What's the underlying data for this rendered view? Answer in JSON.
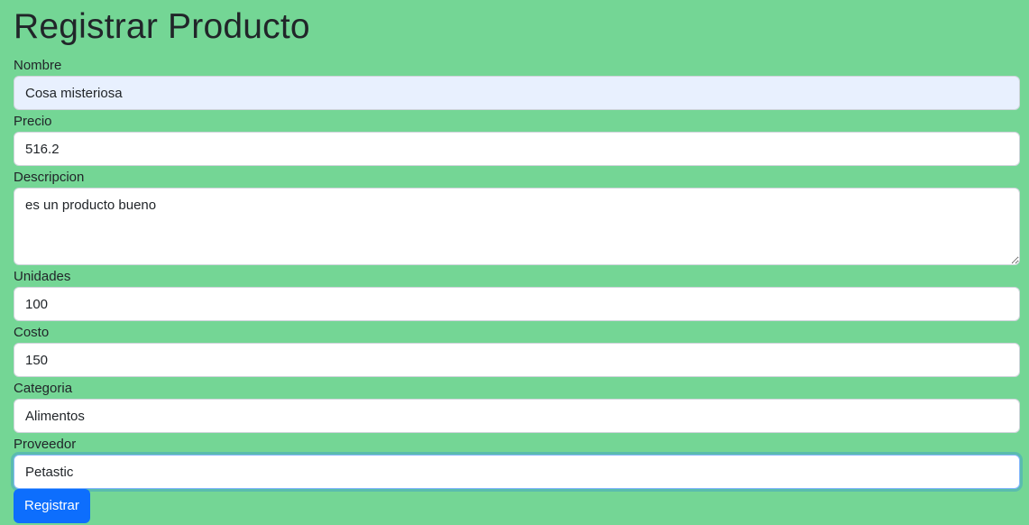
{
  "page": {
    "title": "Registrar Producto"
  },
  "form": {
    "nombre": {
      "label": "Nombre",
      "value": "Cosa misteriosa"
    },
    "precio": {
      "label": "Precio",
      "value": "516.2"
    },
    "descripcion": {
      "label": "Descripcion",
      "value": "es un producto bueno"
    },
    "unidades": {
      "label": "Unidades",
      "value": "100"
    },
    "costo": {
      "label": "Costo",
      "value": "150"
    },
    "categoria": {
      "label": "Categoria",
      "value": "Alimentos"
    },
    "proveedor": {
      "label": "Proveedor",
      "value": "Petastic"
    },
    "submit_label": "Registrar"
  },
  "colors": {
    "background": "#74d695",
    "primary": "#0d6efd",
    "autofill": "#e8f0fe"
  }
}
